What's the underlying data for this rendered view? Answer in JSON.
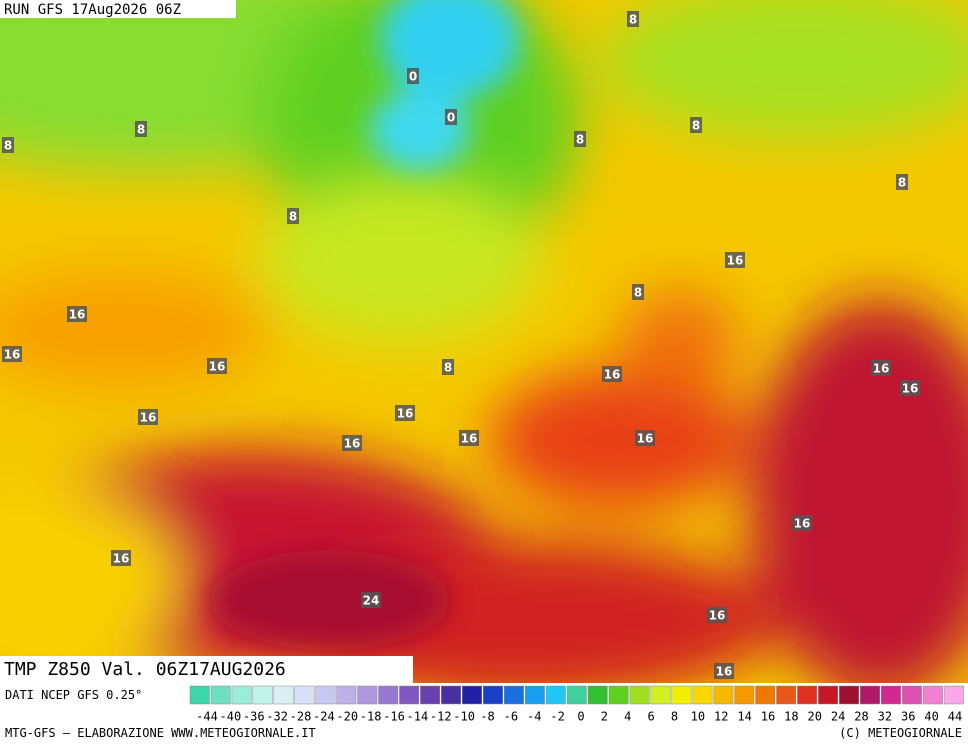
{
  "header": {
    "title": "RUN GFS 17Aug2026 06Z"
  },
  "map": {
    "contour_labels": [
      0,
      0,
      8,
      8,
      8,
      8,
      8,
      8,
      8,
      16,
      8,
      16,
      16,
      16,
      8,
      16,
      16,
      16,
      16,
      16,
      16,
      16,
      16,
      16,
      16,
      24,
      16,
      16
    ]
  },
  "footer": {
    "title": "TMP Z850 Val. 06Z17AUG2026",
    "source": "DATI NCEP GFS 0.25°",
    "scale": {
      "ticks": [
        -44,
        -40,
        -36,
        -32,
        -28,
        -24,
        -20,
        -18,
        -16,
        -14,
        -12,
        -10,
        -8,
        -6,
        -4,
        -2,
        0,
        2,
        4,
        6,
        8,
        10,
        12,
        14,
        16,
        18,
        20,
        24,
        28,
        32,
        36,
        40,
        44
      ],
      "colors": [
        "#3cd6a8",
        "#6ee0c0",
        "#9aeed8",
        "#c0f4e8",
        "#d8f0f4",
        "#d8e0f8",
        "#c8c8f0",
        "#c0b0e8",
        "#b098e0",
        "#9878d0",
        "#8058c0",
        "#6840b0",
        "#4830a0",
        "#2020a8",
        "#1840c8",
        "#1870e0",
        "#18a0f0",
        "#20c8f8",
        "#40d0a0",
        "#30c030",
        "#60d020",
        "#a0e020",
        "#d0f020",
        "#f0f000",
        "#f8d800",
        "#f8b800",
        "#f89800",
        "#f07800",
        "#e85818",
        "#e03020",
        "#c81828",
        "#a01030",
        "#b01868",
        "#d02890",
        "#e050b0",
        "#f080d0",
        "#f8a8e8"
      ]
    },
    "credit": "MTG-GFS — ELABORAZIONE WWW.METEOGIORNALE.IT",
    "copyright": "(C) METEOGIORNALE"
  }
}
